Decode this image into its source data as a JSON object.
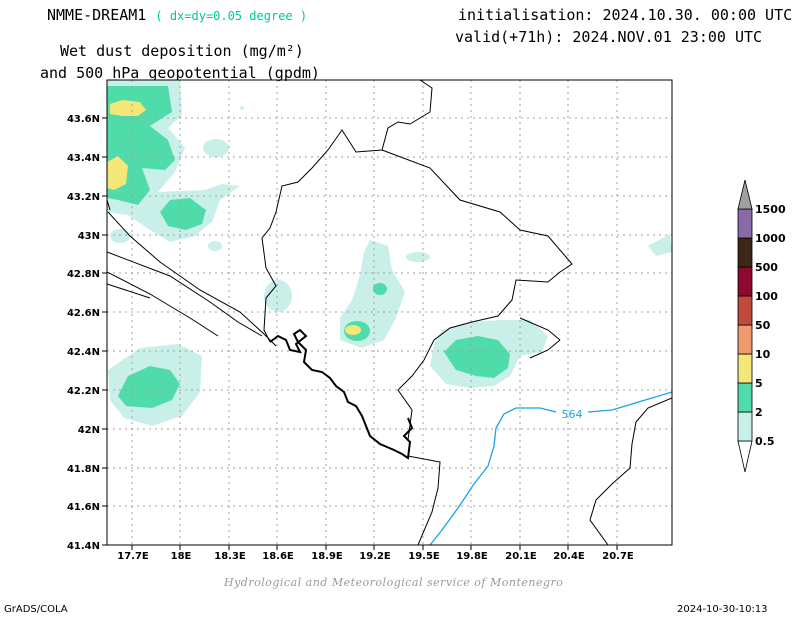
{
  "header": {
    "model": "NMME-DREAM1",
    "resolution": "( dx=dy=0.05 degree )",
    "title_line1": "Wet dust deposition (mg/m²)",
    "title_line2": "and 500 hPa geopotential (gpdm)",
    "init": "initialisation: 2024.10.30. 00:00 UTC",
    "valid": "valid(+71h): 2024.NOV.01 23:00 UTC"
  },
  "axes": {
    "x_ticks": [
      "17.7E",
      "18E",
      "18.3E",
      "18.6E",
      "18.9E",
      "19.2E",
      "19.5E",
      "19.8E",
      "20.1E",
      "20.4E",
      "20.7E"
    ],
    "y_ticks": [
      "43.6N",
      "43.4N",
      "43.2N",
      "43N",
      "42.8N",
      "42.6N",
      "42.4N",
      "42.2N",
      "42N",
      "41.8N",
      "41.6N",
      "41.4N"
    ]
  },
  "map": {
    "extent_lon": [
      17.45,
      21.0
    ],
    "extent_lat": [
      41.4,
      43.78
    ],
    "contour_label": "564",
    "contour_color": "#1aa3e8"
  },
  "colorbar": {
    "levels": [
      "0.5",
      "2",
      "5",
      "10",
      "50",
      "100",
      "500",
      "1000",
      "1500"
    ],
    "colors": [
      "#c8f0e8",
      "#50dcaa",
      "#f5e67a",
      "#f09a6e",
      "#c04a3c",
      "#8c0a30",
      "#3c2814",
      "#8a6aa6",
      "#a0a0a0"
    ]
  },
  "footer": {
    "credit": "Hydrological and Meteorological service of Montenegro",
    "software": "GrADS/COLA",
    "timestamp": "2024-10-30-10:13"
  }
}
